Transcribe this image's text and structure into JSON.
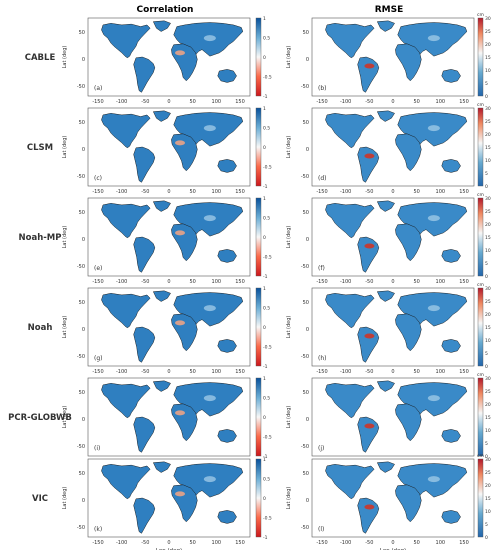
{
  "headers": {
    "col1": "Correlation",
    "col2": "RMSE"
  },
  "models": [
    "CABLE",
    "CLSM",
    "Noah-MP",
    "Noah",
    "PCR-GLOBWB",
    "VIC"
  ],
  "panel_letters": [
    "(a)",
    "(b)",
    "(c)",
    "(d)",
    "(e)",
    "(f)",
    "(g)",
    "(h)",
    "(i)",
    "(j)",
    "(k)",
    "(l)"
  ],
  "axes": {
    "ylabel": "Lat (deg)",
    "xlabel": "Lon (deg)",
    "xticks": [
      "-150",
      "-100",
      "-50",
      "0",
      "50",
      "100",
      "150"
    ],
    "yticks": [
      "50",
      "0",
      "-50"
    ]
  },
  "colorbars": {
    "correlation": {
      "ticks": [
        "1",
        "0.5",
        "0",
        "-0.5",
        "-1"
      ],
      "range": [
        -1,
        1
      ]
    },
    "rmse": {
      "unit": "cm",
      "ticks": [
        "30",
        "25",
        "20",
        "15",
        "10",
        "5",
        "0"
      ],
      "range": [
        0,
        30
      ]
    }
  },
  "colors": {
    "land_blue": "#2f7fc0",
    "land_light": "#9cc8e6",
    "high_red": "#d7301f",
    "land_outline": "#1a1a1a"
  }
}
